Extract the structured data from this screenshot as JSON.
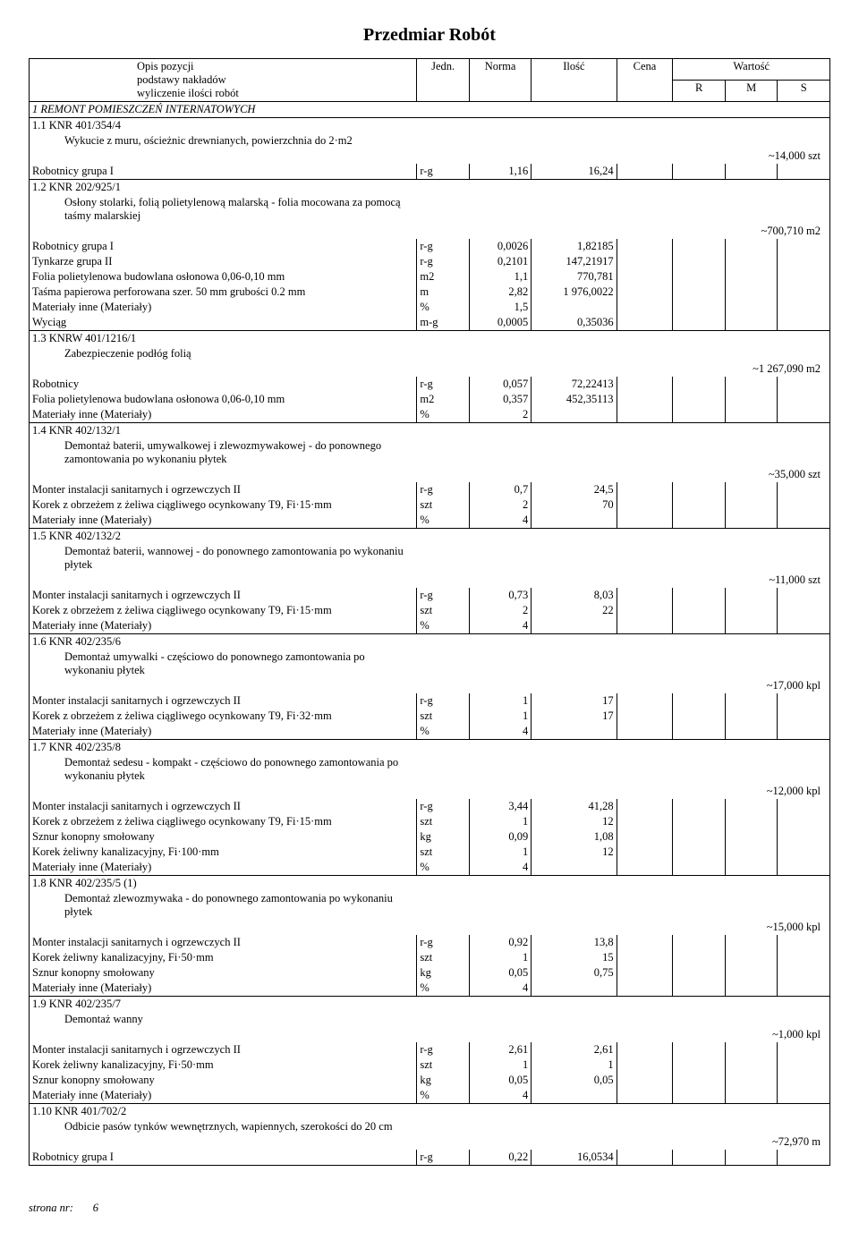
{
  "title": "Przedmiar  Robót",
  "header": {
    "desc_l1": "Opis pozycji",
    "desc_l2": "podstawy nakładów",
    "desc_l3": "wyliczenie ilości robót",
    "jedn": "Jedn.",
    "norma": "Norma",
    "ilosc": "Ilość",
    "cena": "Cena",
    "wartosc": "Wartość",
    "r": "R",
    "m": "M",
    "s": "S"
  },
  "section": "1 REMONT POMIESZCZEŃ INTERNATOWYCH",
  "positions": [
    {
      "code": "1.1 KNR 401/354/4",
      "text": "Wykucie z muru, ościeżnic drewnianych, powierzchnia do 2·m2",
      "qty": "~14,000 szt",
      "rows": [
        {
          "name": "Robotnicy grupa I",
          "jedn": "r-g",
          "norma": "1,16",
          "ilosc": "16,24"
        }
      ]
    },
    {
      "code": "1.2 KNR 202/925/1",
      "text": "Osłony stolarki, folią polietylenową malarską - folia mocowana za pomocą taśmy malarskiej",
      "qty": "~700,710 m2",
      "rows": [
        {
          "name": "Robotnicy grupa I",
          "jedn": "r-g",
          "norma": "0,0026",
          "ilosc": "1,82185"
        },
        {
          "name": "Tynkarze grupa II",
          "jedn": "r-g",
          "norma": "0,2101",
          "ilosc": "147,21917"
        },
        {
          "name": "Folia polietylenowa budowlana osłonowa 0,06-0,10 mm",
          "jedn": "m2",
          "norma": "1,1",
          "ilosc": "770,781"
        },
        {
          "name": "Taśma papierowa perforowana szer. 50 mm grubości 0.2 mm",
          "jedn": "m",
          "norma": "2,82",
          "ilosc": "1 976,0022"
        },
        {
          "name": "Materiały inne (Materiały)",
          "jedn": "%",
          "norma": "1,5",
          "ilosc": ""
        },
        {
          "name": "Wyciąg",
          "jedn": "m-g",
          "norma": "0,0005",
          "ilosc": "0,35036"
        }
      ]
    },
    {
      "code": "1.3 KNRW 401/1216/1",
      "text": "Zabezpieczenie podłóg folią",
      "qty": "~1 267,090 m2",
      "rows": [
        {
          "name": "Robotnicy",
          "jedn": "r-g",
          "norma": "0,057",
          "ilosc": "72,22413"
        },
        {
          "name": "Folia polietylenowa budowlana osłonowa 0,06-0,10 mm",
          "jedn": "m2",
          "norma": "0,357",
          "ilosc": "452,35113"
        },
        {
          "name": "Materiały inne (Materiały)",
          "jedn": "%",
          "norma": "2",
          "ilosc": ""
        }
      ]
    },
    {
      "code": "1.4 KNR 402/132/1",
      "text": "Demontaż baterii, umywalkowej i zlewozmywakowej - do ponownego zamontowania po wykonaniu płytek",
      "qty": "~35,000 szt",
      "rows": [
        {
          "name": "Monter instalacji sanitarnych i ogrzewczych II",
          "jedn": "r-g",
          "norma": "0,7",
          "ilosc": "24,5"
        },
        {
          "name": "Korek z obrzeżem z żeliwa ciągliwego ocynkowany T9, Fi·15·mm",
          "jedn": "szt",
          "norma": "2",
          "ilosc": "70"
        },
        {
          "name": "Materiały inne (Materiały)",
          "jedn": "%",
          "norma": "4",
          "ilosc": ""
        }
      ]
    },
    {
      "code": "1.5 KNR 402/132/2",
      "text": "Demontaż baterii, wannowej - do ponownego zamontowania po wykonaniu płytek",
      "qty": "~11,000 szt",
      "rows": [
        {
          "name": "Monter instalacji sanitarnych i ogrzewczych II",
          "jedn": "r-g",
          "norma": "0,73",
          "ilosc": "8,03"
        },
        {
          "name": "Korek z obrzeżem z żeliwa ciągliwego ocynkowany T9, Fi·15·mm",
          "jedn": "szt",
          "norma": "2",
          "ilosc": "22"
        },
        {
          "name": "Materiały inne (Materiały)",
          "jedn": "%",
          "norma": "4",
          "ilosc": ""
        }
      ]
    },
    {
      "code": "1.6 KNR 402/235/6",
      "text": "Demontaż umywalki - częściowo do ponownego zamontowania po wykonaniu płytek",
      "qty": "~17,000 kpl",
      "rows": [
        {
          "name": "Monter instalacji sanitarnych i ogrzewczych II",
          "jedn": "r-g",
          "norma": "1",
          "ilosc": "17"
        },
        {
          "name": "Korek z obrzeżem z żeliwa ciągliwego ocynkowany T9, Fi·32·mm",
          "jedn": "szt",
          "norma": "1",
          "ilosc": "17"
        },
        {
          "name": "Materiały inne (Materiały)",
          "jedn": "%",
          "norma": "4",
          "ilosc": ""
        }
      ]
    },
    {
      "code": "1.7 KNR 402/235/8",
      "text": "Demontaż sedesu - kompakt - częściowo do ponownego zamontowania po wykonaniu płytek",
      "qty": "~12,000 kpl",
      "rows": [
        {
          "name": "Monter instalacji sanitarnych i ogrzewczych II",
          "jedn": "r-g",
          "norma": "3,44",
          "ilosc": "41,28"
        },
        {
          "name": "Korek z obrzeżem z żeliwa ciągliwego ocynkowany T9, Fi·15·mm",
          "jedn": "szt",
          "norma": "1",
          "ilosc": "12"
        },
        {
          "name": "Sznur konopny smołowany",
          "jedn": "kg",
          "norma": "0,09",
          "ilosc": "1,08"
        },
        {
          "name": "Korek żeliwny kanalizacyjny, Fi·100·mm",
          "jedn": "szt",
          "norma": "1",
          "ilosc": "12"
        },
        {
          "name": "Materiały inne (Materiały)",
          "jedn": "%",
          "norma": "4",
          "ilosc": ""
        }
      ]
    },
    {
      "code": "1.8 KNR 402/235/5 (1)",
      "text": "Demontaż zlewozmywaka - do ponownego zamontowania po wykonaniu płytek",
      "qty": "~15,000 kpl",
      "rows": [
        {
          "name": "Monter instalacji sanitarnych i ogrzewczych II",
          "jedn": "r-g",
          "norma": "0,92",
          "ilosc": "13,8"
        },
        {
          "name": "Korek żeliwny kanalizacyjny, Fi·50·mm",
          "jedn": "szt",
          "norma": "1",
          "ilosc": "15"
        },
        {
          "name": "Sznur konopny smołowany",
          "jedn": "kg",
          "norma": "0,05",
          "ilosc": "0,75"
        },
        {
          "name": "Materiały inne (Materiały)",
          "jedn": "%",
          "norma": "4",
          "ilosc": ""
        }
      ]
    },
    {
      "code": "1.9 KNR 402/235/7",
      "text": "Demontaż wanny",
      "qty": "~1,000 kpl",
      "rows": [
        {
          "name": "Monter instalacji sanitarnych i ogrzewczych II",
          "jedn": "r-g",
          "norma": "2,61",
          "ilosc": "2,61"
        },
        {
          "name": "Korek żeliwny kanalizacyjny, Fi·50·mm",
          "jedn": "szt",
          "norma": "1",
          "ilosc": "1"
        },
        {
          "name": "Sznur konopny smołowany",
          "jedn": "kg",
          "norma": "0,05",
          "ilosc": "0,05"
        },
        {
          "name": "Materiały inne (Materiały)",
          "jedn": "%",
          "norma": "4",
          "ilosc": ""
        }
      ]
    },
    {
      "code": "1.10 KNR 401/702/2",
      "text": "Odbicie pasów tynków wewnętrznych, wapiennych, szerokości do 20 cm",
      "qty": "~72,970 m",
      "rows": [
        {
          "name": "Robotnicy grupa I",
          "jedn": "r-g",
          "norma": "0,22",
          "ilosc": "16,0534"
        }
      ]
    }
  ],
  "footer_label": "strona nr:",
  "footer_page": "6"
}
